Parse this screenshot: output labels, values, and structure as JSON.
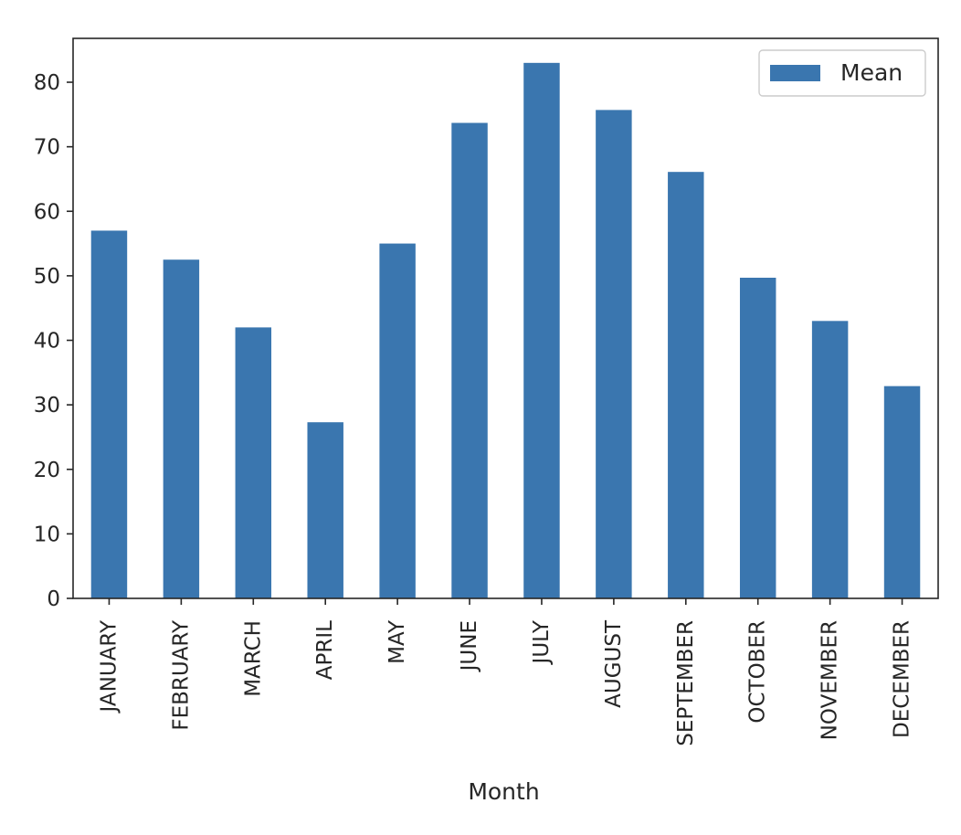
{
  "chart_data": {
    "type": "bar",
    "categories": [
      "JANUARY",
      "FEBRUARY",
      "MARCH",
      "APRIL",
      "MAY",
      "JUNE",
      "JULY",
      "AUGUST",
      "SEPTEMBER",
      "OCTOBER",
      "NOVEMBER",
      "DECEMBER"
    ],
    "series": [
      {
        "name": "Mean",
        "values": [
          57.0,
          52.5,
          42.0,
          27.3,
          55.0,
          73.7,
          83.0,
          75.7,
          66.1,
          49.7,
          43.0,
          32.9
        ],
        "color": "#3a76af"
      }
    ],
    "title": "",
    "xlabel": "Month",
    "ylabel": "",
    "ylim": [
      0,
      86.8
    ],
    "yticks": [
      0,
      10,
      20,
      30,
      40,
      50,
      60,
      70,
      80
    ],
    "grid": false,
    "legend_position": "top-right"
  }
}
